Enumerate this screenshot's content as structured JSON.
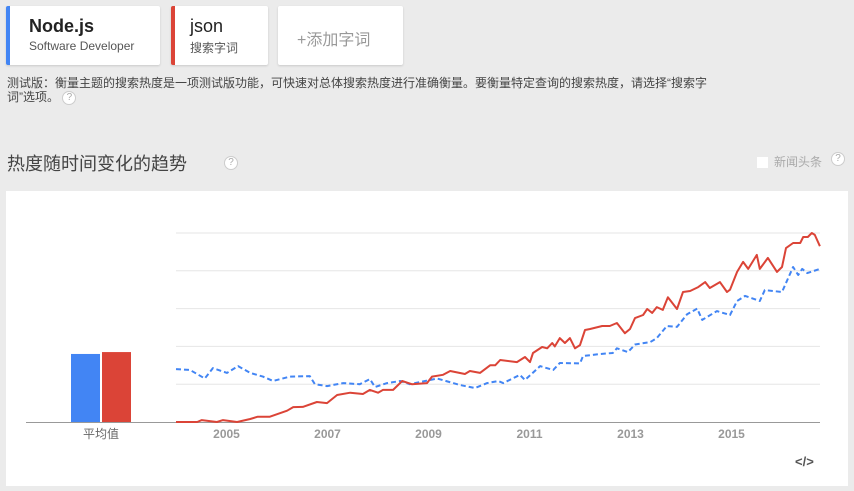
{
  "terms": [
    {
      "title": "Node.js",
      "subtitle": "Software Developer",
      "color": "#4285f4"
    },
    {
      "title": "json",
      "subtitle": "搜索字词",
      "color": "#db4437"
    }
  ],
  "add_term_label": "+添加字词",
  "beta_notice": "测试版：衡量主题的搜索热度是一项测试版功能，可快速对总体搜索热度进行准确衡量。要衡量特定查询的搜索热度，请选择“搜索字词”选项。",
  "section_title": "热度随时间变化的趋势",
  "help_icon": "?",
  "news_headlines_label": "新闻头条",
  "news_headlines_checked": false,
  "embed_icon": "</>",
  "chart_data": {
    "type": "line",
    "ylim": [
      0,
      100
    ],
    "grid": true,
    "x_tick_labels": [
      "2005",
      "2007",
      "2009",
      "2011",
      "2013",
      "2015"
    ],
    "average_label": "平均值",
    "averages": [
      {
        "term": "Node.js",
        "value": 36,
        "color": "#4285f4"
      },
      {
        "term": "json",
        "value": 37,
        "color": "#db4437"
      }
    ],
    "series": [
      {
        "name": "Node.js",
        "color": "#4285f4",
        "dashed": true,
        "x": [
          2004.0,
          2004.28,
          2004.57,
          2004.73,
          2005.01,
          2005.23,
          2005.47,
          2005.72,
          2005.92,
          2006.26,
          2006.65,
          2006.75,
          2006.99,
          2007.31,
          2007.64,
          2007.84,
          2007.94,
          2008.18,
          2008.44,
          2008.63,
          2009.17,
          2009.62,
          2009.92,
          2010.16,
          2010.38,
          2010.48,
          2010.81,
          2010.91,
          2011.21,
          2011.47,
          2011.6,
          2012.0,
          2012.06,
          2012.4,
          2012.65,
          2012.73,
          2012.95,
          2013.09,
          2013.39,
          2013.52,
          2013.72,
          2013.92,
          2014.12,
          2014.32,
          2014.42,
          2014.71,
          2014.97,
          2015.11,
          2015.27,
          2015.56,
          2015.66,
          2016.0,
          2016.22,
          2016.32,
          2016.4,
          2016.5,
          2016.75
        ],
        "y": [
          28,
          27.5,
          23,
          28.5,
          26,
          29.6,
          26,
          24,
          21.7,
          24,
          24.3,
          20,
          19,
          20.6,
          20,
          22.7,
          18.5,
          20.6,
          21.7,
          20,
          23,
          19.6,
          18,
          20.6,
          21.7,
          20.6,
          24.9,
          22.2,
          29.6,
          27.5,
          31.2,
          31,
          34.9,
          36,
          36.5,
          39,
          37,
          41,
          42.3,
          44.4,
          50.8,
          50.3,
          57,
          60,
          54,
          58.7,
          56.6,
          64,
          66.7,
          64,
          69.8,
          68.8,
          82,
          77.8,
          81,
          78.8,
          81
        ]
      },
      {
        "name": "json",
        "color": "#db4437",
        "dashed": false,
        "x": [
          2004.0,
          2004.42,
          2004.51,
          2004.81,
          2004.93,
          2005.21,
          2005.47,
          2005.62,
          2005.86,
          2006.2,
          2006.32,
          2006.51,
          2006.79,
          2006.99,
          2007.19,
          2007.45,
          2007.7,
          2007.84,
          2008.0,
          2008.1,
          2008.3,
          2008.48,
          2008.67,
          2008.97,
          2009.07,
          2009.29,
          2009.43,
          2009.72,
          2009.82,
          2010.02,
          2010.22,
          2010.32,
          2010.42,
          2010.75,
          2010.91,
          2011.01,
          2011.07,
          2011.25,
          2011.35,
          2011.45,
          2011.5,
          2011.6,
          2011.7,
          2011.8,
          2011.9,
          2012.0,
          2012.1,
          2012.2,
          2012.44,
          2012.59,
          2012.73,
          2012.89,
          2012.99,
          2013.09,
          2013.25,
          2013.33,
          2013.43,
          2013.52,
          2013.64,
          2013.74,
          2013.92,
          2014.04,
          2014.18,
          2014.34,
          2014.48,
          2014.57,
          2014.77,
          2014.91,
          2014.97,
          2015.11,
          2015.23,
          2015.33,
          2015.5,
          2015.56,
          2015.72,
          2015.9,
          2016.0,
          2016.08,
          2016.22,
          2016.36,
          2016.42,
          2016.51,
          2016.59,
          2016.65,
          2016.75
        ],
        "y": [
          0,
          0,
          1,
          0,
          1,
          0,
          1.6,
          2.8,
          2.8,
          6,
          7.9,
          8,
          10.6,
          10,
          14.3,
          15.5,
          14.8,
          17,
          15.5,
          17,
          17,
          21.7,
          20,
          20.6,
          24,
          25,
          27,
          25.4,
          27,
          26,
          30,
          30,
          32.8,
          31.7,
          34.4,
          31.7,
          36.5,
          39.7,
          39,
          41.8,
          40,
          44.4,
          41.8,
          44.4,
          39,
          40.7,
          48.7,
          49.2,
          50.8,
          50.8,
          52.4,
          47,
          49.2,
          55,
          56.6,
          59.8,
          57.7,
          60.8,
          59.3,
          66,
          59.8,
          68.8,
          69.3,
          71.4,
          74,
          70.9,
          74,
          68.8,
          70,
          79.4,
          84.7,
          81,
          88.4,
          81,
          86.8,
          79.4,
          82,
          92,
          94.7,
          94.7,
          97.9,
          97.9,
          100,
          99,
          93
        ]
      }
    ]
  }
}
